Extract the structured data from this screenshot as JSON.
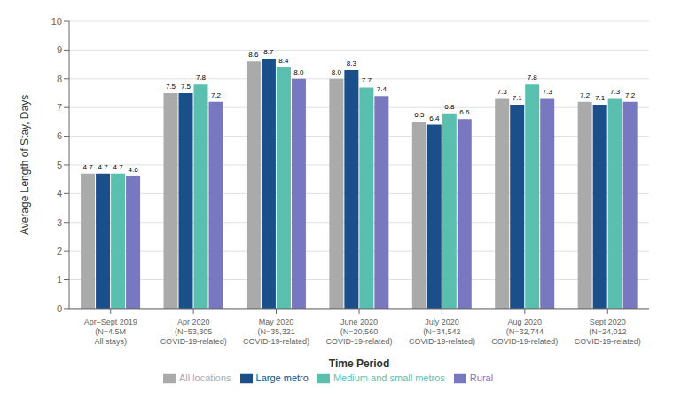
{
  "chart_data": {
    "type": "bar",
    "x_label": "Time Period",
    "y_label": "Average Length of Stay, Days",
    "categories": [
      "Apr–Sept 2019\n(N=4.5M\nAll stays)",
      "Apr 2020\n(N=53,305\nCOVID-19-related)",
      "May 2020\n(N=35,321\nCOVID-19-related)",
      "June 2020\n(N=20,560\nCOVID-19-related)",
      "July 2020\n(N=34,542\nCOVID-19-related)",
      "Aug 2020\n(N=32,744\nCOVID-19-related)",
      "Sept 2020\n(N=24,012\nCOVID-19-related)"
    ],
    "series": [
      {
        "name": "All locations",
        "color": "#aaaaaa",
        "values": [
          4.7,
          7.5,
          8.6,
          8.0,
          6.5,
          7.3,
          7.2
        ],
        "value_labels": [
          "4.7",
          "7.5",
          "8.6",
          "8.0",
          "6.5",
          "7.3",
          "7.2"
        ]
      },
      {
        "name": "Large metro",
        "color": "#1a4f8a",
        "values": [
          4.7,
          7.5,
          8.7,
          8.3,
          6.4,
          7.1,
          7.1
        ],
        "value_labels": [
          "4.7",
          "7.5",
          "8.7",
          "8.3",
          "6.4",
          "7.1",
          "7.1"
        ]
      },
      {
        "name": "Medium and small metros",
        "color": "#5bbfb0",
        "values": [
          4.7,
          7.8,
          8.4,
          7.7,
          6.8,
          7.8,
          7.3
        ],
        "value_labels": [
          "4.7",
          "7.8",
          "8.4",
          "7.7",
          "6.8",
          "7.8",
          "7.3"
        ]
      },
      {
        "name": "Rural",
        "color": "#7878c0",
        "values": [
          4.6,
          7.2,
          8.0,
          7.4,
          6.6,
          7.3,
          7.2
        ],
        "value_labels": [
          "4.6",
          "7.2",
          "8.0",
          "7.4",
          "6.6",
          "7.3",
          "7.2"
        ]
      }
    ],
    "ylim": [
      0,
      10
    ],
    "yticks": [
      0,
      1,
      2,
      3,
      4,
      5,
      6,
      7,
      8,
      9,
      10
    ],
    "grid": true,
    "legend": "bottom",
    "data_labels": true
  }
}
